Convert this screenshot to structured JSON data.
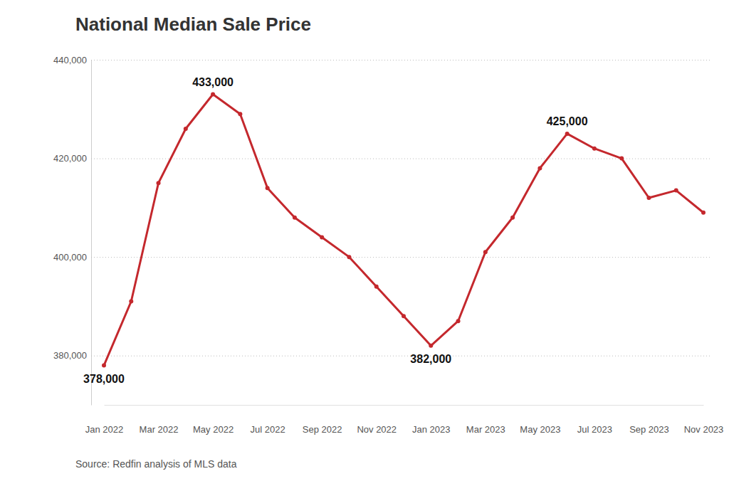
{
  "chart_data": {
    "type": "line",
    "title": "National Median Sale Price",
    "source": "Source: Redfin analysis of MLS data",
    "categories": [
      "Jan 2022",
      null,
      "Mar 2022",
      null,
      "May 2022",
      null,
      "Jul 2022",
      null,
      "Sep 2022",
      null,
      "Nov 2022",
      null,
      "Jan 2023",
      null,
      "Mar 2023",
      null,
      "May 2023",
      null,
      "Jul 2023",
      null,
      "Sep 2023",
      null,
      "Nov 2023"
    ],
    "values": [
      378000,
      391000,
      415000,
      426000,
      433000,
      429000,
      414000,
      408000,
      404000,
      400000,
      394000,
      388000,
      382000,
      387000,
      401000,
      408000,
      418000,
      425000,
      422000,
      420000,
      412000,
      413500,
      409000
    ],
    "value_labels": [
      "378,000",
      null,
      null,
      null,
      "433,000",
      null,
      null,
      null,
      null,
      null,
      null,
      null,
      "382,000",
      null,
      null,
      null,
      null,
      "425,000",
      null,
      null,
      null,
      null,
      null
    ],
    "color": "#c4282d",
    "marker": "circle",
    "ylim": [
      370000,
      440000
    ],
    "yticks": [
      {
        "value": 380000,
        "label": "380,000"
      },
      {
        "value": 400000,
        "label": "400,000"
      },
      {
        "value": 420000,
        "label": "420,000"
      },
      {
        "value": 440000,
        "label": "440,000"
      }
    ],
    "grid": true,
    "data_labels": true
  }
}
